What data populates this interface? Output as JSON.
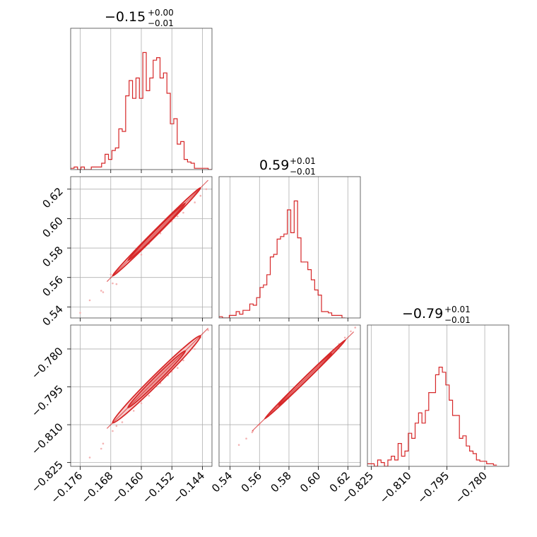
{
  "figure_type": "corner plot",
  "colors": {
    "series": "#d62728",
    "points": "#f4b3b3",
    "fill_outer": "#f6c6c6",
    "fill_inner": "#eb9393",
    "grid": "#b0b0b0"
  },
  "chart_data": [
    {
      "type": "histogram",
      "panel": "diag-0",
      "title": {
        "main": "−0.15",
        "sup": "+0.00",
        "sub": "−0.01"
      },
      "xlim": [
        -0.1785,
        -0.1415
      ],
      "ylim": [
        0,
        1
      ],
      "x_ticks": [
        -0.176,
        -0.168,
        -0.16,
        -0.152,
        -0.144
      ],
      "hist": {
        "start": -0.1785,
        "step": 0.0009,
        "counts": [
          0.01,
          0.02,
          0.0,
          0.02,
          0.0,
          0.0,
          0.02,
          0.02,
          0.02,
          0.05,
          0.12,
          0.08,
          0.15,
          0.17,
          0.32,
          0.3,
          0.58,
          0.7,
          0.56,
          0.72,
          0.56,
          0.92,
          0.62,
          0.72,
          0.86,
          0.88,
          0.72,
          0.76,
          0.6,
          0.36,
          0.4,
          0.2,
          0.22,
          0.08,
          0.06,
          0.05,
          0.01,
          0.01,
          0.01,
          0.01,
          0.0
        ]
      }
    },
    {
      "type": "histogram",
      "panel": "diag-1",
      "title": {
        "main": "0.59",
        "sup": "+0.01",
        "sub": "−0.01"
      },
      "xlim": [
        0.5325,
        0.6285
      ],
      "ylim": [
        0,
        1
      ],
      "x_ticks": [
        0.54,
        0.56,
        0.58,
        0.6,
        0.62
      ],
      "hist": {
        "start": 0.5325,
        "step": 0.00232,
        "counts": [
          0.01,
          0.0,
          0.0,
          0.02,
          0.02,
          0.05,
          0.03,
          0.06,
          0.06,
          0.11,
          0.1,
          0.16,
          0.24,
          0.26,
          0.34,
          0.48,
          0.5,
          0.62,
          0.64,
          0.66,
          0.85,
          0.67,
          0.92,
          0.63,
          0.44,
          0.44,
          0.38,
          0.3,
          0.22,
          0.18,
          0.05,
          0.05,
          0.04,
          0.02,
          0.02,
          0.02,
          0.0
        ]
      }
    },
    {
      "type": "histogram",
      "panel": "diag-2",
      "title": {
        "main": "−0.79",
        "sup": "+0.01",
        "sub": "−0.01"
      },
      "xlim": [
        -0.8265,
        -0.7705
      ],
      "ylim": [
        0,
        1
      ],
      "x_ticks": [
        -0.825,
        -0.81,
        -0.795,
        -0.78
      ],
      "hist": {
        "start": -0.8265,
        "step": 0.00135,
        "counts": [
          0.02,
          0.02,
          0.0,
          0.05,
          0.03,
          0.0,
          0.05,
          0.08,
          0.05,
          0.18,
          0.08,
          0.12,
          0.26,
          0.22,
          0.34,
          0.42,
          0.34,
          0.44,
          0.58,
          0.58,
          0.72,
          0.78,
          0.74,
          0.64,
          0.52,
          0.4,
          0.4,
          0.22,
          0.24,
          0.16,
          0.12,
          0.1,
          0.05,
          0.04,
          0.04,
          0.02,
          0.02,
          0.01
        ]
      }
    },
    {
      "type": "scatter",
      "panel": "pair-1-0",
      "xlim": [
        -0.1785,
        -0.1415
      ],
      "ylim": [
        0.5325,
        0.6285
      ],
      "x_ticks": [
        -0.176,
        -0.168,
        -0.16,
        -0.152,
        -0.144
      ],
      "y_ticks": [
        0.54,
        0.56,
        0.58,
        0.6,
        0.62
      ],
      "center": [
        -0.156,
        0.591
      ],
      "slope": 2.6,
      "x_extent": [
        -0.169,
        -0.1425
      ],
      "contours": [
        {
          "level": "outer",
          "center": [
            -0.156,
            0.591
          ],
          "half_length": 0.0115,
          "half_width": 0.0024
        },
        {
          "level": "inner",
          "center": [
            -0.156,
            0.591
          ],
          "half_length": 0.0075,
          "half_width": 0.0014
        }
      ],
      "points": [
        [
          -0.176,
          0.536
        ],
        [
          -0.1735,
          0.5445
        ],
        [
          -0.17,
          0.55
        ],
        [
          -0.1675,
          0.556
        ],
        [
          -0.168,
          0.562
        ],
        [
          -0.165,
          0.567
        ],
        [
          -0.162,
          0.574
        ],
        [
          -0.158,
          0.583
        ],
        [
          -0.155,
          0.59
        ],
        [
          -0.152,
          0.598
        ],
        [
          -0.149,
          0.604
        ],
        [
          -0.146,
          0.611
        ],
        [
          -0.1445,
          0.6155
        ],
        [
          -0.143,
          0.62
        ],
        [
          -0.1665,
          0.5555
        ],
        [
          -0.1705,
          0.551
        ],
        [
          -0.16,
          0.5755
        ],
        [
          -0.153,
          0.6005
        ],
        [
          -0.1585,
          0.5835
        ],
        [
          -0.1505,
          0.6015
        ]
      ]
    },
    {
      "type": "scatter",
      "panel": "pair-2-0",
      "xlim": [
        -0.1785,
        -0.1415
      ],
      "ylim": [
        -0.8265,
        -0.7705
      ],
      "x_ticks": [
        -0.176,
        -0.168,
        -0.16,
        -0.152,
        -0.144
      ],
      "y_ticks": [
        -0.825,
        -0.81,
        -0.795,
        -0.78
      ],
      "center": [
        -0.156,
        -0.792
      ],
      "slope": 1.5,
      "x_extent": [
        -0.169,
        -0.1425
      ],
      "contours": [
        {
          "level": "outer",
          "center": [
            -0.156,
            -0.792
          ],
          "half_length": 0.0115,
          "half_width": 0.0025
        },
        {
          "level": "inner",
          "center": [
            -0.156,
            -0.792
          ],
          "half_length": 0.0075,
          "half_width": 0.0015
        }
      ],
      "points": [
        [
          -0.1735,
          -0.823
        ],
        [
          -0.17,
          -0.8175
        ],
        [
          -0.1675,
          -0.8125
        ],
        [
          -0.165,
          -0.809
        ],
        [
          -0.162,
          -0.8045
        ],
        [
          -0.158,
          -0.7985
        ],
        [
          -0.155,
          -0.7935
        ],
        [
          -0.152,
          -0.789
        ],
        [
          -0.149,
          -0.7845
        ],
        [
          -0.146,
          -0.78
        ],
        [
          -0.1445,
          -0.7755
        ],
        [
          -0.1425,
          -0.7725
        ],
        [
          -0.1665,
          -0.8105
        ],
        [
          -0.1705,
          -0.8195
        ],
        [
          -0.16,
          -0.8015
        ],
        [
          -0.153,
          -0.7905
        ],
        [
          -0.1585,
          -0.7965
        ],
        [
          -0.1505,
          -0.7875
        ]
      ]
    },
    {
      "type": "scatter",
      "panel": "pair-2-1",
      "xlim": [
        0.5325,
        0.6285
      ],
      "ylim": [
        -0.8265,
        -0.7705
      ],
      "x_ticks": [
        0.54,
        0.56,
        0.58,
        0.6,
        0.62
      ],
      "y_ticks": [
        -0.825,
        -0.81,
        -0.795,
        -0.78
      ],
      "center": [
        0.591,
        -0.792
      ],
      "slope": 0.57,
      "x_extent": [
        0.555,
        0.624
      ],
      "contours": [
        {
          "level": "outer",
          "center": [
            0.591,
            -0.792
          ],
          "half_length": 0.0275,
          "half_width": 0.0009
        },
        {
          "level": "inner",
          "center": [
            0.591,
            -0.792
          ],
          "half_length": 0.018,
          "half_width": 0.0005
        }
      ],
      "points": [
        [
          0.546,
          -0.818
        ],
        [
          0.551,
          -0.8155
        ],
        [
          0.555,
          -0.813
        ],
        [
          0.56,
          -0.81
        ],
        [
          0.566,
          -0.8065
        ],
        [
          0.573,
          -0.802
        ],
        [
          0.58,
          -0.798
        ],
        [
          0.587,
          -0.794
        ],
        [
          0.594,
          -0.79
        ],
        [
          0.601,
          -0.786
        ],
        [
          0.608,
          -0.782
        ],
        [
          0.614,
          -0.778
        ],
        [
          0.618,
          -0.7755
        ],
        [
          0.622,
          -0.773
        ],
        [
          0.625,
          -0.7715
        ],
        [
          0.5555,
          -0.8125
        ],
        [
          0.57,
          -0.8035
        ],
        [
          0.596,
          -0.7885
        ]
      ]
    }
  ],
  "y_tick_labels": [
    {
      "panel": "pair-1-0",
      "labels": [
        "0.54",
        "0.56",
        "0.58",
        "0.60",
        "0.62"
      ]
    },
    {
      "panel": "pair-2-0",
      "labels": [
        "−0.825",
        "−0.810",
        "−0.795",
        "−0.780"
      ]
    }
  ],
  "x_tick_labels": [
    {
      "panel": "pair-2-0",
      "labels": [
        "−0.176",
        "−0.168",
        "−0.160",
        "−0.152",
        "−0.144"
      ]
    },
    {
      "panel": "pair-2-1",
      "labels": [
        "0.54",
        "0.56",
        "0.58",
        "0.60",
        "0.62"
      ]
    },
    {
      "panel": "diag-2",
      "labels": [
        "−0.825",
        "−0.810",
        "−0.795",
        "−0.780"
      ]
    }
  ]
}
